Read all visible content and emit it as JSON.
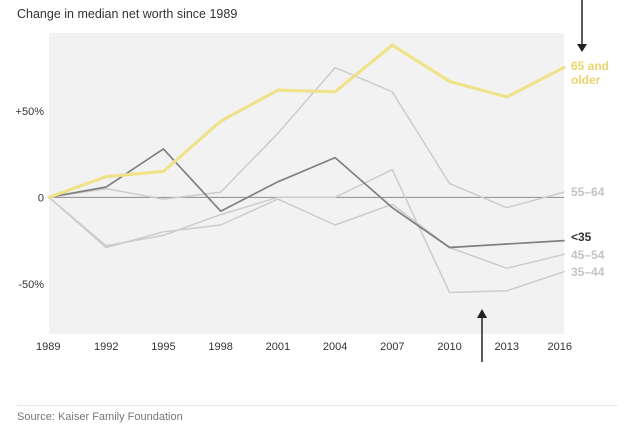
{
  "title": "Change in median net worth since 1989",
  "source": "Source: Kaiser Family Foundation",
  "colors": {
    "background": "#f2f2f2",
    "zero_line": "#8c8c8c",
    "text": "#333333",
    "muted_text": "#777777",
    "highlight": "#f0e28a",
    "dark_series": "#808080",
    "light_series": "#cccccc",
    "arrow": "#222222"
  },
  "chart_data": {
    "type": "line",
    "x": [
      1989,
      1992,
      1995,
      1998,
      2001,
      2004,
      2007,
      2010,
      2013,
      2016
    ],
    "xlabel": "",
    "ylabel": "",
    "ylim": [
      -79,
      95
    ],
    "y_ticks": [
      {
        "value": 50,
        "label": "+50%"
      },
      {
        "value": 0,
        "label": "0"
      },
      {
        "value": -50,
        "label": "-50%"
      }
    ],
    "grid": false,
    "annotations": [
      "downward arrow pointing at the 65 and older line in 2016",
      "upward arrow pointing at the 35-44 line around 2011"
    ],
    "series": [
      {
        "name": "55–64",
        "label_lines": [
          "55–64"
        ],
        "values": [
          0,
          5,
          -1,
          3,
          37,
          75,
          61,
          8,
          -6,
          3
        ],
        "color": "#cccccc",
        "width": 1.5
      },
      {
        "name": "45–54",
        "label_lines": [
          "45–54"
        ],
        "values": [
          0,
          -29,
          -20,
          -16,
          -1,
          -16,
          -4,
          -29,
          -41,
          -33
        ],
        "color": "#cccccc",
        "width": 1.5
      },
      {
        "name": "35–44",
        "label_lines": [
          "35–44"
        ],
        "values": [
          0,
          -28,
          -22,
          -10,
          0,
          0,
          16,
          -55,
          -54,
          -43
        ],
        "color": "#cccccc",
        "width": 1.5
      },
      {
        "name": "<35",
        "label_lines": [
          "<35"
        ],
        "values": [
          0,
          6,
          28,
          -8,
          9,
          23,
          -6,
          -29,
          -27,
          -25
        ],
        "color": "#808080",
        "width": 1.7
      },
      {
        "name": "65 and older",
        "label_lines": [
          "65 and",
          "older"
        ],
        "values": [
          0,
          12,
          15,
          44,
          62,
          61,
          88,
          67,
          58,
          75
        ],
        "color": "#f0e28a",
        "width": 3.2
      }
    ]
  }
}
